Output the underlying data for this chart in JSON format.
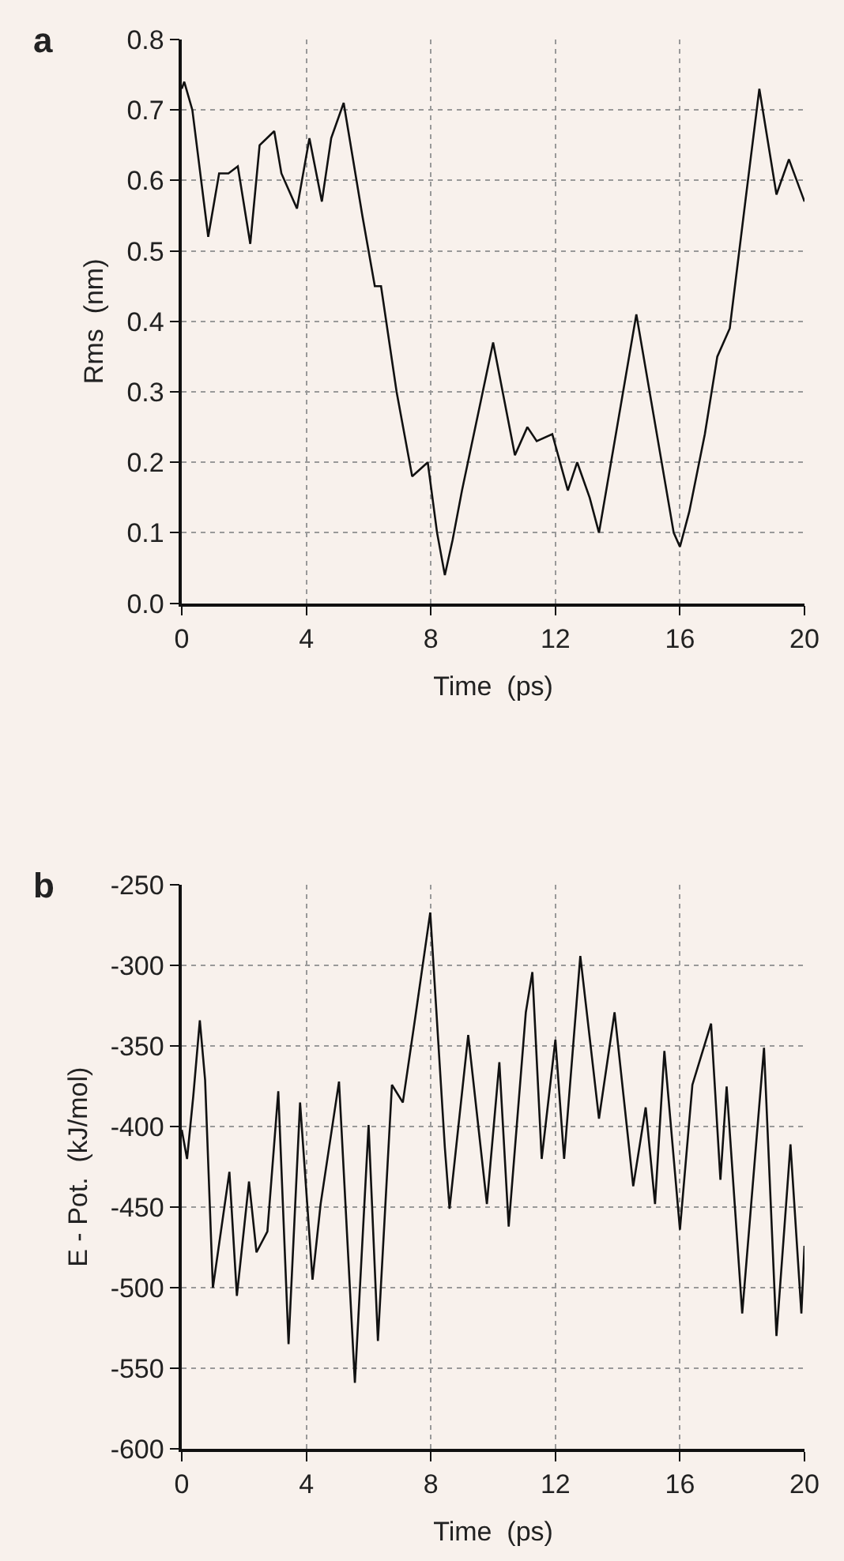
{
  "chart_data": [
    {
      "type": "line",
      "annotations": [
        "a"
      ],
      "xlabel": "Time  (ps)",
      "ylabel": "Rms  (nm)",
      "xlim": [
        0,
        20
      ],
      "xticks": [
        0,
        4,
        8,
        12,
        16,
        20
      ],
      "ylim": [
        0,
        0.8
      ],
      "yticks": [
        {
          "value": 0,
          "label": "0.0"
        },
        0.1,
        0.2,
        0.3,
        0.4,
        0.5,
        0.6,
        0.7,
        0.8
      ],
      "grid": true,
      "marker": "none",
      "line_style": "solid",
      "series": [
        {
          "color": "#111111",
          "x": [
            0,
            0.08,
            0.34,
            0.85,
            1.2,
            1.5,
            1.8,
            2.2,
            2.5,
            2.97,
            3.2,
            3.7,
            4.1,
            4.5,
            4.8,
            5.2,
            5.8,
            6.2,
            6.4,
            6.9,
            7.4,
            7.9,
            8.2,
            8.45,
            8.7,
            9.0,
            10.0,
            10.7,
            11.1,
            11.4,
            11.9,
            12.4,
            12.7,
            13.1,
            13.4,
            14.6,
            15.8,
            16.0,
            16.3,
            16.8,
            17.2,
            17.6,
            18.1,
            18.55,
            19.1,
            19.5,
            20.0
          ],
          "values": [
            0.73,
            0.74,
            0.7,
            0.52,
            0.61,
            0.61,
            0.62,
            0.51,
            0.65,
            0.67,
            0.61,
            0.56,
            0.66,
            0.57,
            0.66,
            0.71,
            0.55,
            0.45,
            0.45,
            0.3,
            0.18,
            0.2,
            0.1,
            0.04,
            0.09,
            0.16,
            0.37,
            0.21,
            0.25,
            0.23,
            0.24,
            0.16,
            0.2,
            0.15,
            0.1,
            0.41,
            0.1,
            0.08,
            0.13,
            0.24,
            0.35,
            0.39,
            0.57,
            0.73,
            0.58,
            0.63,
            0.57
          ]
        }
      ]
    },
    {
      "type": "line",
      "annotations": [
        "b"
      ],
      "xlabel": "Time  (ps)",
      "ylabel": "E - Pot.  (kJ/mol)",
      "xlim": [
        0,
        20
      ],
      "xticks": [
        0,
        4,
        8,
        12,
        16,
        20
      ],
      "ylim": [
        -600,
        -250
      ],
      "yticks": [
        -600,
        -550,
        -500,
        -450,
        -400,
        -350,
        -300,
        -250
      ],
      "grid": true,
      "marker": "none",
      "line_style": "solid",
      "series": [
        {
          "color": "#111111",
          "x": [
            0,
            0.17,
            0.37,
            0.58,
            0.75,
            1.0,
            1.53,
            1.77,
            2.16,
            2.4,
            2.75,
            3.1,
            3.43,
            3.8,
            4.2,
            4.46,
            5.05,
            5.56,
            6.0,
            6.3,
            6.75,
            7.1,
            7.5,
            7.98,
            8.45,
            8.6,
            9.2,
            9.8,
            10.2,
            10.5,
            11.05,
            11.26,
            11.56,
            12.0,
            12.28,
            12.8,
            13.4,
            13.9,
            14.5,
            14.9,
            15.2,
            15.5,
            16.0,
            16.4,
            17.0,
            17.3,
            17.5,
            18.0,
            18.7,
            19.1,
            19.55,
            19.9,
            20.0
          ],
          "values": [
            -402,
            -420,
            -381,
            -334,
            -371,
            -500,
            -428,
            -505,
            -434,
            -478,
            -465,
            -378,
            -535,
            -385,
            -495,
            -448,
            -372,
            -559,
            -399,
            -533,
            -374,
            -385,
            -332,
            -267,
            -413,
            -451,
            -343,
            -448,
            -360,
            -462,
            -329,
            -304,
            -420,
            -346,
            -420,
            -294,
            -395,
            -329,
            -437,
            -388,
            -448,
            -353,
            -464,
            -374,
            -336,
            -433,
            -375,
            -516,
            -351,
            -530,
            -411,
            -516,
            -474
          ]
        }
      ]
    }
  ]
}
